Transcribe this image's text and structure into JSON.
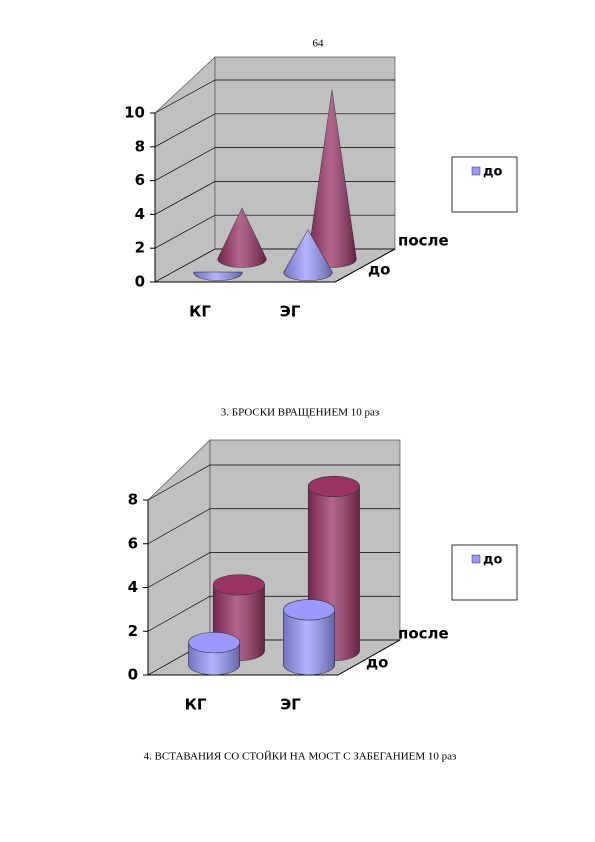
{
  "page_number": "64",
  "captions": [
    "3. БРОСКИ ВРАЩЕНИЕМ 10 раз",
    "4. ВСТАВАНИЯ СО СТОЙКИ НА МОСТ С ЗАБЕГАНИЕМ 10 раз"
  ],
  "chart_data": [
    {
      "type": "cone",
      "categories": [
        "КГ",
        "ЭГ"
      ],
      "series": [
        {
          "name": "до",
          "color": "#9999ff",
          "values": [
            0,
            2.5
          ]
        },
        {
          "name": "после",
          "color": "#993366",
          "values": [
            3,
            10
          ]
        }
      ],
      "ylim": [
        0,
        10
      ],
      "yticks": [
        0,
        2,
        4,
        6,
        8,
        10
      ],
      "grid": true
    },
    {
      "type": "cylinder",
      "categories": [
        "КГ",
        "ЭГ"
      ],
      "series": [
        {
          "name": "до",
          "color": "#9999ff",
          "values": [
            1,
            2.5
          ]
        },
        {
          "name": "после",
          "color": "#993366",
          "values": [
            3,
            7.5
          ]
        }
      ],
      "ylim": [
        0,
        8
      ],
      "yticks": [
        0,
        2,
        4,
        6,
        8
      ],
      "grid": true
    }
  ]
}
